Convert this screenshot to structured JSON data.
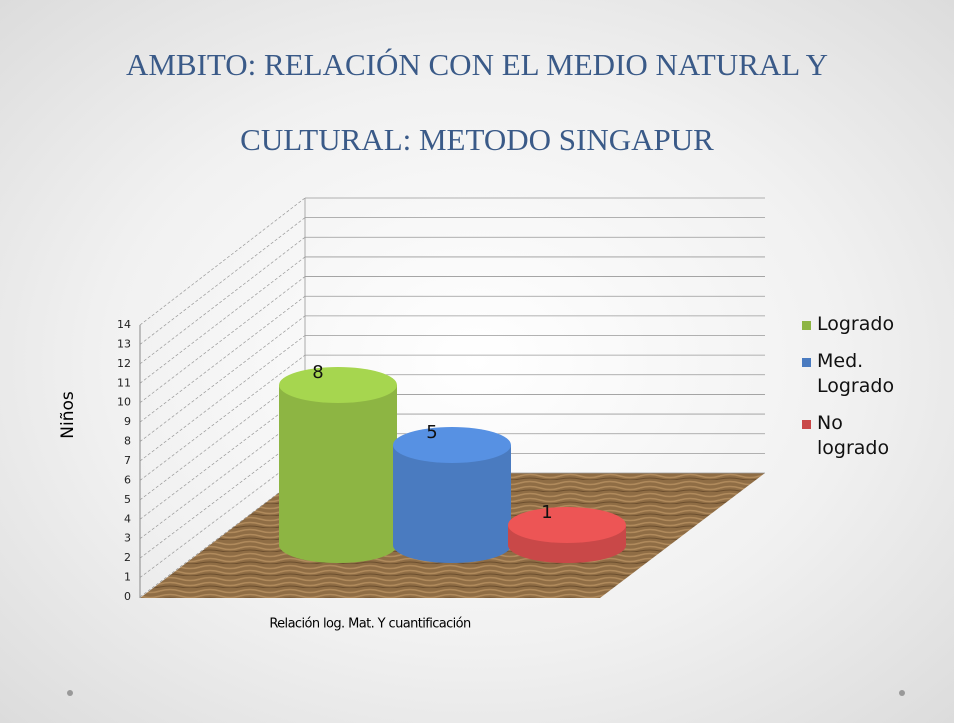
{
  "chart_data": {
    "type": "cylinder3d",
    "title": [
      "AMBITO: RELACIÓN CON EL MEDIO NATURAL Y",
      "CULTURAL: METODO SINGAPUR"
    ],
    "y_label": "Niños",
    "categories": [
      "Relación log. Mat. Y cuantificación"
    ],
    "series": [
      {
        "name": "Logrado",
        "color": "#8db543",
        "values": [
          8
        ]
      },
      {
        "name": "Med. Logrado",
        "color": "#4a7bc0",
        "values": [
          5
        ]
      },
      {
        "name": "No logrado",
        "color": "#c94848",
        "values": [
          1
        ]
      }
    ],
    "ylim": [
      0,
      14
    ],
    "yticks": [
      0,
      1,
      2,
      3,
      4,
      5,
      6,
      7,
      8,
      9,
      10,
      11,
      12,
      13,
      14
    ],
    "grid": true,
    "legend": "right"
  }
}
